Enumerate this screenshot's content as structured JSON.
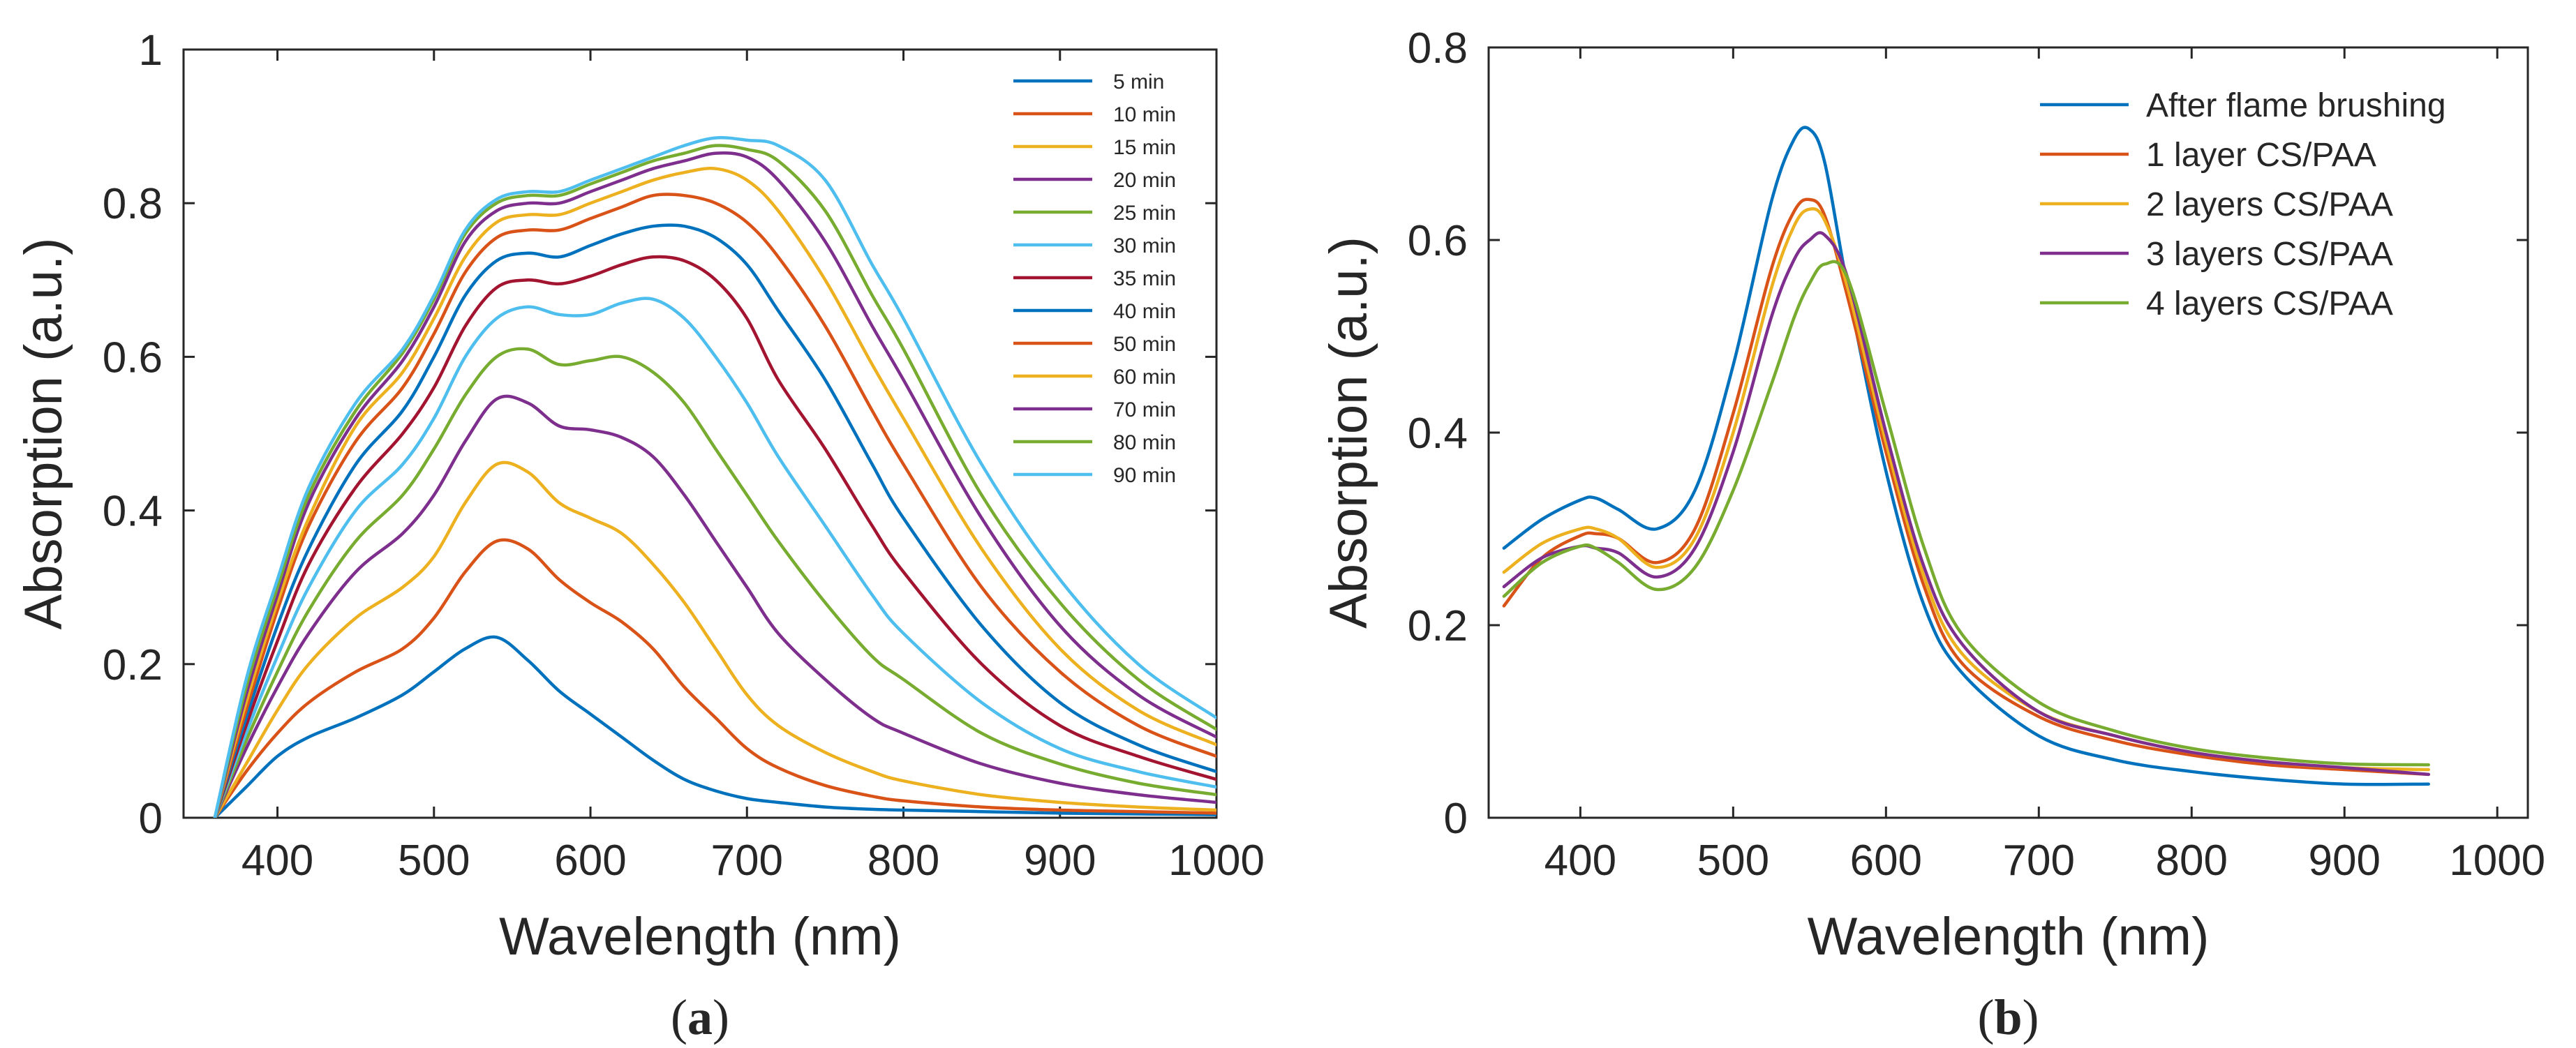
{
  "chart_data": [
    {
      "type": "line",
      "panel_label": "a",
      "xlabel": "Wavelength (nm)",
      "ylabel": "Absorption (a.u.)",
      "xlim": [
        340,
        1000
      ],
      "ylim": [
        0,
        1
      ],
      "xticks": [
        400,
        500,
        600,
        700,
        800,
        900,
        1000
      ],
      "yticks": [
        0,
        0.2,
        0.4,
        0.6,
        0.8,
        1
      ],
      "ytick_labels": [
        "0",
        "0.2",
        "0.4",
        "0.6",
        "0.8",
        "1"
      ],
      "x": [
        360,
        380,
        400,
        420,
        450,
        480,
        500,
        520,
        540,
        560,
        580,
        600,
        620,
        640,
        660,
        680,
        700,
        720,
        750,
        780,
        800,
        850,
        900,
        950,
        1000
      ],
      "legend_location": "top-right",
      "series": [
        {
          "name": "5 min",
          "color": "#0072BD",
          "values": [
            0.0,
            0.04,
            0.08,
            0.105,
            0.13,
            0.16,
            0.19,
            0.22,
            0.235,
            0.205,
            0.165,
            0.135,
            0.105,
            0.075,
            0.05,
            0.035,
            0.025,
            0.02,
            0.014,
            0.011,
            0.01,
            0.008,
            0.006,
            0.005,
            0.004
          ]
        },
        {
          "name": "10 min",
          "color": "#D95319",
          "values": [
            0.0,
            0.06,
            0.11,
            0.15,
            0.19,
            0.22,
            0.26,
            0.32,
            0.36,
            0.35,
            0.31,
            0.28,
            0.255,
            0.22,
            0.17,
            0.13,
            0.09,
            0.065,
            0.042,
            0.028,
            0.022,
            0.014,
            0.01,
            0.008,
            0.006
          ]
        },
        {
          "name": "15 min",
          "color": "#EDB120",
          "values": [
            0.0,
            0.07,
            0.14,
            0.2,
            0.26,
            0.3,
            0.34,
            0.41,
            0.46,
            0.45,
            0.41,
            0.39,
            0.37,
            0.33,
            0.28,
            0.22,
            0.16,
            0.12,
            0.085,
            0.06,
            0.048,
            0.03,
            0.02,
            0.014,
            0.01
          ]
        },
        {
          "name": "20 min",
          "color": "#7E2F8E",
          "values": [
            0.0,
            0.09,
            0.17,
            0.24,
            0.32,
            0.37,
            0.42,
            0.49,
            0.545,
            0.54,
            0.51,
            0.505,
            0.495,
            0.47,
            0.42,
            0.36,
            0.3,
            0.24,
            0.18,
            0.13,
            0.11,
            0.07,
            0.045,
            0.03,
            0.02
          ]
        },
        {
          "name": "25 min",
          "color": "#77AC30",
          "values": [
            0.0,
            0.1,
            0.19,
            0.27,
            0.36,
            0.42,
            0.48,
            0.55,
            0.6,
            0.61,
            0.59,
            0.595,
            0.6,
            0.58,
            0.54,
            0.48,
            0.42,
            0.36,
            0.28,
            0.21,
            0.18,
            0.11,
            0.07,
            0.045,
            0.03
          ]
        },
        {
          "name": "30 min",
          "color": "#4DBEEE",
          "values": [
            0.0,
            0.11,
            0.21,
            0.3,
            0.4,
            0.46,
            0.52,
            0.6,
            0.65,
            0.665,
            0.655,
            0.655,
            0.67,
            0.675,
            0.65,
            0.6,
            0.54,
            0.47,
            0.38,
            0.29,
            0.24,
            0.15,
            0.09,
            0.06,
            0.04
          ]
        },
        {
          "name": "35 min",
          "color": "#A2142F",
          "values": [
            0.0,
            0.12,
            0.23,
            0.33,
            0.43,
            0.5,
            0.56,
            0.64,
            0.69,
            0.7,
            0.695,
            0.705,
            0.72,
            0.73,
            0.725,
            0.7,
            0.65,
            0.57,
            0.48,
            0.38,
            0.32,
            0.2,
            0.12,
            0.08,
            0.05
          ]
        },
        {
          "name": "40 min",
          "color": "#0072BD",
          "values": [
            0.0,
            0.13,
            0.25,
            0.35,
            0.46,
            0.53,
            0.6,
            0.68,
            0.725,
            0.735,
            0.73,
            0.745,
            0.76,
            0.77,
            0.77,
            0.755,
            0.72,
            0.66,
            0.57,
            0.46,
            0.39,
            0.25,
            0.15,
            0.095,
            0.06
          ]
        },
        {
          "name": "50 min",
          "color": "#D95319",
          "values": [
            0.0,
            0.14,
            0.27,
            0.38,
            0.49,
            0.56,
            0.63,
            0.71,
            0.755,
            0.765,
            0.765,
            0.78,
            0.795,
            0.81,
            0.81,
            0.8,
            0.775,
            0.73,
            0.64,
            0.53,
            0.46,
            0.3,
            0.19,
            0.12,
            0.08
          ]
        },
        {
          "name": "60 min",
          "color": "#EDB120",
          "values": [
            0.0,
            0.15,
            0.28,
            0.39,
            0.51,
            0.58,
            0.65,
            0.73,
            0.775,
            0.785,
            0.785,
            0.8,
            0.815,
            0.83,
            0.84,
            0.845,
            0.83,
            0.79,
            0.7,
            0.59,
            0.52,
            0.35,
            0.22,
            0.14,
            0.095
          ]
        },
        {
          "name": "70 min",
          "color": "#7E2F8E",
          "values": [
            0.0,
            0.16,
            0.29,
            0.41,
            0.52,
            0.595,
            0.665,
            0.75,
            0.79,
            0.8,
            0.8,
            0.815,
            0.83,
            0.845,
            0.855,
            0.865,
            0.86,
            0.83,
            0.75,
            0.64,
            0.57,
            0.39,
            0.25,
            0.16,
            0.105
          ]
        },
        {
          "name": "80 min",
          "color": "#77AC30",
          "values": [
            0.0,
            0.17,
            0.3,
            0.42,
            0.53,
            0.605,
            0.675,
            0.76,
            0.8,
            0.81,
            0.81,
            0.825,
            0.84,
            0.855,
            0.865,
            0.875,
            0.87,
            0.855,
            0.79,
            0.68,
            0.61,
            0.42,
            0.28,
            0.18,
            0.115
          ]
        },
        {
          "name": "90 min",
          "color": "#4DBEEE",
          "values": [
            0.0,
            0.18,
            0.31,
            0.43,
            0.54,
            0.61,
            0.68,
            0.765,
            0.805,
            0.815,
            0.815,
            0.83,
            0.845,
            0.86,
            0.875,
            0.885,
            0.882,
            0.875,
            0.83,
            0.72,
            0.65,
            0.46,
            0.31,
            0.2,
            0.13
          ]
        }
      ]
    },
    {
      "type": "line",
      "panel_label": "b",
      "xlabel": "Wavelength (nm)",
      "ylabel": "Absorption (a.u.)",
      "xlim": [
        340,
        1020
      ],
      "ylim": [
        0,
        0.8
      ],
      "xticks": [
        400,
        500,
        600,
        700,
        800,
        900,
        1000
      ],
      "yticks": [
        0,
        0.2,
        0.4,
        0.6,
        0.8
      ],
      "ytick_labels": [
        "0",
        "0.2",
        "0.4",
        "0.6",
        "0.8"
      ],
      "x": [
        350,
        375,
        400,
        410,
        425,
        450,
        475,
        500,
        525,
        540,
        550,
        560,
        575,
        600,
        625,
        650,
        700,
        750,
        800,
        850,
        900,
        955
      ],
      "legend_location": "top-right",
      "series": [
        {
          "name": "After flame brushing",
          "color": "#0072BD",
          "values": [
            0.28,
            0.31,
            0.33,
            0.332,
            0.32,
            0.3,
            0.34,
            0.47,
            0.64,
            0.705,
            0.715,
            0.68,
            0.55,
            0.36,
            0.22,
            0.15,
            0.085,
            0.06,
            0.048,
            0.04,
            0.035,
            0.035
          ]
        },
        {
          "name": "1 layer CS/PAA",
          "color": "#D95319",
          "values": [
            0.22,
            0.27,
            0.293,
            0.295,
            0.29,
            0.265,
            0.3,
            0.42,
            0.57,
            0.63,
            0.642,
            0.625,
            0.54,
            0.38,
            0.24,
            0.16,
            0.105,
            0.08,
            0.065,
            0.055,
            0.05,
            0.045
          ]
        },
        {
          "name": "2 layers CS/PAA",
          "color": "#EDB120",
          "values": [
            0.255,
            0.285,
            0.3,
            0.3,
            0.29,
            0.26,
            0.29,
            0.4,
            0.55,
            0.615,
            0.632,
            0.62,
            0.55,
            0.39,
            0.25,
            0.17,
            0.11,
            0.085,
            0.068,
            0.058,
            0.052,
            0.05
          ]
        },
        {
          "name": "3 layers CS/PAA",
          "color": "#7E2F8E",
          "values": [
            0.24,
            0.27,
            0.282,
            0.28,
            0.275,
            0.25,
            0.28,
            0.38,
            0.52,
            0.58,
            0.6,
            0.605,
            0.56,
            0.4,
            0.26,
            0.18,
            0.11,
            0.085,
            0.068,
            0.058,
            0.052,
            0.045
          ]
        },
        {
          "name": "4 layers CS/PAA",
          "color": "#77AC30",
          "values": [
            0.23,
            0.265,
            0.282,
            0.28,
            0.265,
            0.237,
            0.26,
            0.34,
            0.45,
            0.52,
            0.555,
            0.575,
            0.56,
            0.42,
            0.28,
            0.19,
            0.12,
            0.09,
            0.072,
            0.062,
            0.056,
            0.055
          ]
        }
      ]
    }
  ]
}
